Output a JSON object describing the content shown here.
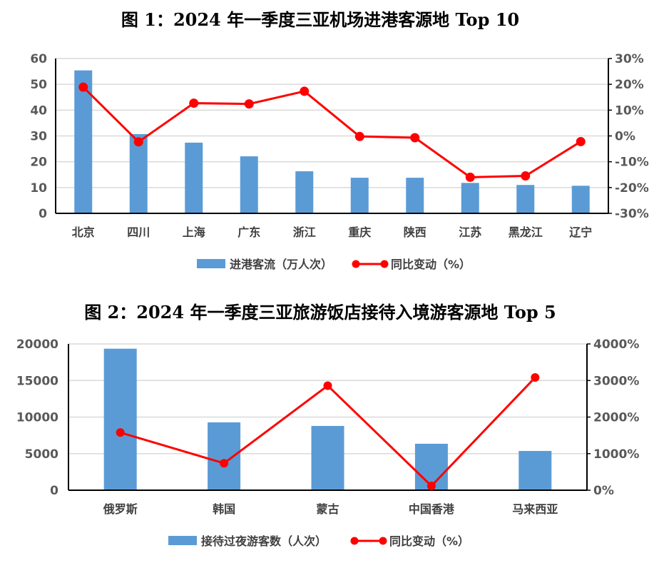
{
  "colors": {
    "bar": "#5B9BD5",
    "line": "#FF0000",
    "grid": "#D9D9D9",
    "axis": "#000000"
  },
  "chart_data": [
    {
      "type": "bar+line",
      "title": "图 1：2024 年一季度三亚机场进港客源地 Top 10",
      "categories": [
        "北京",
        "四川",
        "上海",
        "广东",
        "浙江",
        "重庆",
        "陕西",
        "江苏",
        "黑龙江",
        "辽宁"
      ],
      "series": [
        {
          "name": "进港客流（万人次）",
          "type": "bar",
          "axis": "left",
          "values": [
            55.4,
            30.7,
            27.4,
            22.1,
            16.3,
            13.8,
            13.8,
            11.8,
            11.0,
            10.7
          ]
        },
        {
          "name": "同比变动（%）",
          "type": "line",
          "axis": "right",
          "values": [
            18.9,
            -2.3,
            12.7,
            12.4,
            17.3,
            -0.2,
            -0.7,
            -16.0,
            -15.5,
            -2.2
          ]
        }
      ],
      "left_axis": {
        "range": [
          0,
          60
        ],
        "ticks": [
          "0",
          "10",
          "20",
          "30",
          "40",
          "50",
          "60"
        ]
      },
      "right_axis": {
        "range": [
          -30,
          30
        ],
        "ticks": [
          "-30%",
          "-20%",
          "-10%",
          "0%",
          "10%",
          "20%",
          "30%"
        ]
      },
      "grid": true,
      "legend": "bottom"
    },
    {
      "type": "bar+line",
      "title": "图 2：2024 年一季度三亚旅游饭店接待入境游客源地 Top 5",
      "categories": [
        "俄罗斯",
        "韩国",
        "蒙古",
        "中国香港",
        "马来西亚"
      ],
      "series": [
        {
          "name": "接待过夜游客数（人次）",
          "type": "bar",
          "axis": "left",
          "values": [
            19350,
            9280,
            8790,
            6350,
            5370
          ]
        },
        {
          "name": "同比变动（%）",
          "type": "line",
          "axis": "right",
          "values": [
            1577,
            737,
            2859,
            117,
            3082
          ]
        }
      ],
      "left_axis": {
        "range": [
          0,
          20000
        ],
        "ticks": [
          "0",
          "5000",
          "10000",
          "15000",
          "20000"
        ]
      },
      "right_axis": {
        "range": [
          0,
          4000
        ],
        "ticks": [
          "0%",
          "1000%",
          "2000%",
          "3000%",
          "4000%"
        ]
      },
      "grid": true,
      "legend": "bottom"
    }
  ]
}
